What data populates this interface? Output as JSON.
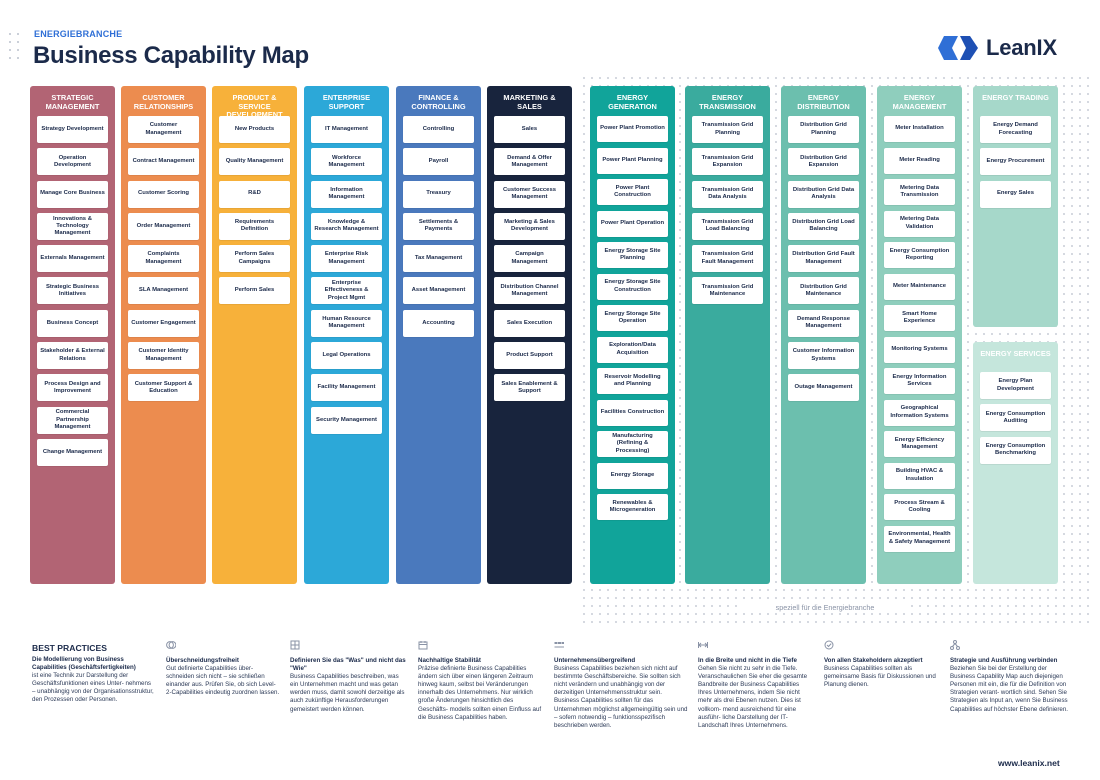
{
  "header": {
    "sup": "ENERGIEBRANCHE",
    "title": "Business Capability Map"
  },
  "logo": {
    "text": "LeanIX",
    "colors": [
      "#2f6fd6",
      "#1e50b4"
    ]
  },
  "columns": [
    {
      "title": "STRATEGIC MANAGEMENT",
      "color": "#b26474",
      "items": [
        "Strategy Development",
        "Operation Development",
        "Manage Core Business",
        "Innovations & Technology Management",
        "Externals Management",
        "Strategic Business Initiatives",
        "Business Concept",
        "Stakeholder & External Relations",
        "Process Design and Improvement",
        "Commercial Partnership Management",
        "Change Management"
      ]
    },
    {
      "title": "CUSTOMER RELATIONSHIPS",
      "color": "#ec8c4f",
      "items": [
        "Customer Management",
        "Contract Management",
        "Customer Scoring",
        "Order Management",
        "Complaints Management",
        "SLA Management",
        "Customer Engagement",
        "Customer Identity Management",
        "Customer Support & Education"
      ]
    },
    {
      "title": "PRODUCT & SERVICE DEVELOPMENT",
      "color": "#f7b13a",
      "items": [
        "New Products",
        "Quality Management",
        "R&D",
        "Requirements Definition",
        "Perform Sales Campaigns",
        "Perform Sales"
      ]
    },
    {
      "title": "ENTERPRISE SUPPORT",
      "color": "#2ca8d8",
      "items": [
        "IT Management",
        "Workforce Management",
        "Information Management",
        "Knowledge & Research Management",
        "Enterprise Risk Management",
        "Enterprise Effectiveness & Project Mgmt",
        "Human Resource Management",
        "Legal Operations",
        "Facility Management",
        "Security Management"
      ]
    },
    {
      "title": "FINANCE & CONTROLLING",
      "color": "#4a79bd",
      "items": [
        "Controlling",
        "Payroll",
        "Treasury",
        "Settlements & Payments",
        "Tax Management",
        "Asset Management",
        "Accounting"
      ]
    },
    {
      "title": "MARKETING & SALES",
      "color": "#18243d",
      "items": [
        "Sales",
        "Demand & Offer Management",
        "Customer Success Management",
        "Marketing & Sales Development",
        "Campaign Management",
        "Distribution Channel Management",
        "Sales Execution",
        "Product Support",
        "Sales Enablement & Support"
      ]
    },
    {
      "title": "ENERGY GENERATION",
      "color": "#11a49a",
      "items": [
        "Power Plant Promotion",
        "Power Plant Planning",
        "Power Plant Construction",
        "Power Plant Operation",
        "Energy Storage Site Planning",
        "Energy Storage Site Construction",
        "Energy Storage Site Operation",
        "Exploration/Data Acquisition",
        "Reservoir Modelling and Planning",
        "Facilities Construction",
        "Manufacturing (Refining & Processing)",
        "Energy Storage",
        "Renewables & Microgeneration"
      ]
    },
    {
      "title": "ENERGY TRANSMISSION",
      "color": "#3aab9e",
      "items": [
        "Transmission Grid Planning",
        "Transmission Grid Expansion",
        "Transmission Grid Data Analysis",
        "Transmission Grid Load Balancing",
        "Transmission Grid Fault Management",
        "Transmission Grid Maintenance"
      ]
    },
    {
      "title": "ENERGY DISTRIBUTION",
      "color": "#6cbfae",
      "items": [
        "Distribution Grid Planning",
        "Distribution Grid Expansion",
        "Distribution Grid Data Analysis",
        "Distribution Grid Load Balancing",
        "Distribution Grid Fault Management",
        "Distribution Grid Maintenance",
        "Demand Response Management",
        "Customer Information Systems",
        "Outage Management"
      ]
    },
    {
      "title": "ENERGY MANAGEMENT",
      "color": "#8fcebd",
      "items": [
        "Meter Installation",
        "Meter Reading",
        "Metering Data Transmission",
        "Metering Data Validation",
        "Energy Consumption Reporting",
        "Meter Maintenance",
        "Smart Home Experience",
        "Monitoring Systems",
        "Energy Information Services",
        "Geographical Information Systems",
        "Energy Efficiency Management",
        "Building HVAC & Insulation",
        "Process Stream & Cooling",
        "Environmental, Health & Safety Management"
      ]
    },
    {
      "title": "ENERGY TRADING",
      "color": "#a6d8ca",
      "items": [
        "Energy Demand Forecasting",
        "Energy Procurement",
        "Energy Sales"
      ]
    },
    {
      "title": "ENERGY SERVICES",
      "color": "#c5e6dc",
      "items": [
        "Energy Plan Development",
        "Energy Consumption Auditing",
        "Energy Consumption Benchmarking"
      ]
    }
  ],
  "energy_note": "speziell für die Energiebranche",
  "best_practices": {
    "heading": "BEST PRACTICES",
    "items": [
      {
        "icon": "",
        "title": "Die Modellierung von Business Capabilities (Geschäftsfertigkeiten)",
        "text": " ist eine Technik zur Darstellung der Geschäftsfunktionen eines Unter- nehmens – unabhängig von der Organisationsstruktur, den Prozessen oder Personen."
      },
      {
        "icon": "overlap-icon",
        "title": "Überschneidungsfreiheit",
        "text": "Gut definierte Capabilities über- schneiden sich nicht – sie schließen einander aus. Prüfen Sie, ob sich Level-2-Capabilities eindeutig zuordnen lassen."
      },
      {
        "icon": "layout-icon",
        "title": "Definieren Sie das \"Was\" und nicht das \"Wie\"",
        "text": "Business Capabilities beschreiben, was ein Unternehmen macht und was getan werden muss, damit sowohl derzeitige als auch zukünftige Herausforderungen gemeistert werden können."
      },
      {
        "icon": "calendar-icon",
        "title": "Nachhaltige Stabilität",
        "text": "Präzise definierte Business Capabilities ändern sich über einen längeren Zeitraum hinweg kaum, selbst bei Veränderungen innerhalb des Unternehmens. Nur wirklich große Änderungen hinsichtlich des Geschäfts- modells sollten einen Einfluss auf die Business Capabilities haben."
      },
      {
        "icon": "organization-icon",
        "title": "Unternehmensübergreifend",
        "text": "Business Capabilities beziehen sich nicht auf bestimmte Geschäftsbereiche. Sie sollten sich nicht verändern und unabhängig von der derzeitigen Unternehmensstruktur sein. Business Capabilities sollten für das Unternehmen möglichst allgemeingültig sein und – sofern notwendig – funktionsspezifisch beschrieben werden."
      },
      {
        "icon": "width-arrows-icon",
        "title": "In die Breite und nicht in die Tiefe",
        "text": "Gehen Sie nicht zu sehr in die Tiefe. Veranschaulichen Sie eher die gesamte Bandbreite der Business Capabilities Ihres Unternehmens, indem Sie nicht mehr als drei Ebenen nutzen. Dies ist vollkom- mend ausreichend für eine ausführ- liche Darstellung der IT-Landschaft Ihres Unternehmens."
      },
      {
        "icon": "check-circle-icon",
        "title": "Von allen Stakeholdern akzeptiert",
        "text": "Business Capabilities sollten als gemeinsame Basis für Diskussionen und Planung dienen."
      },
      {
        "icon": "hierarchy-icon",
        "title": "Strategie und Ausführung verbinden",
        "text": "Beziehen Sie bei der Erstellung der Business Capability Map auch diejenigen Personen mit ein, die für die Definition von Strategien verant- wortlich sind. Sehen Sie Strategien als Input an, wenn Sie Business Capabilities auf höchster Ebene definieren."
      }
    ]
  },
  "footer": {
    "url": "www.leanix.net"
  }
}
